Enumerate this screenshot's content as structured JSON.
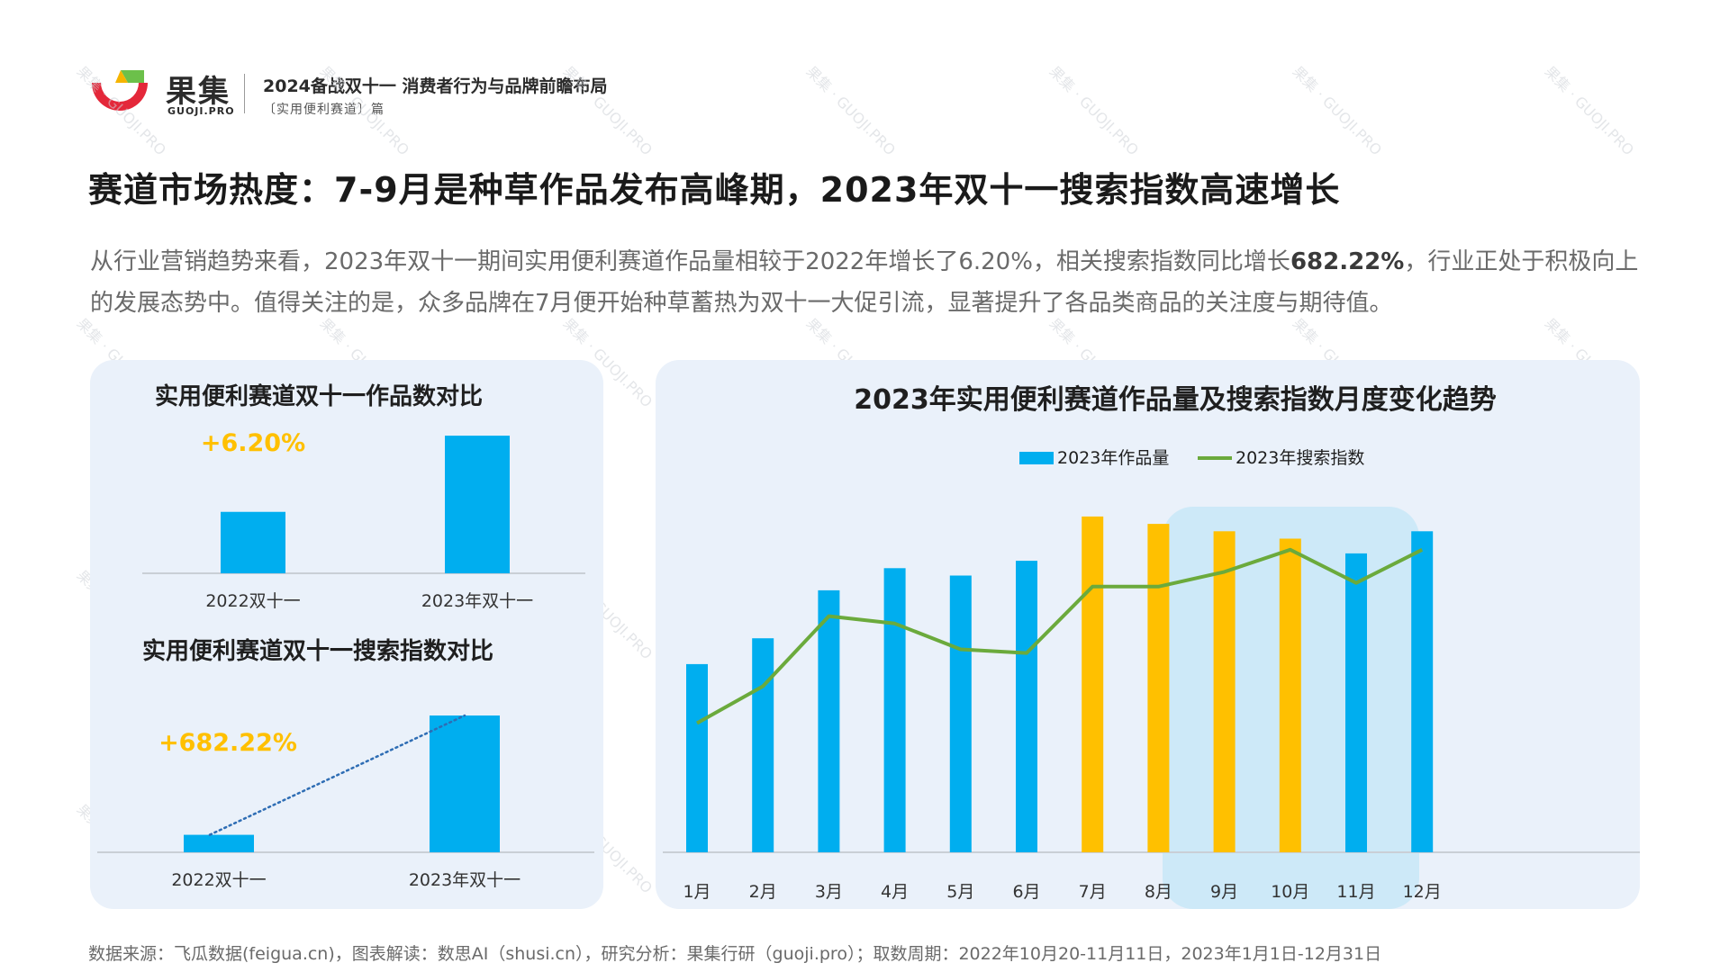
{
  "header": {
    "brand_cn": "果集",
    "brand_en": "GUOJI.PRO",
    "report_title": "2024备战双十一 消费者行为与品牌前瞻布局",
    "report_subtitle": "〔实用便利赛道〕篇",
    "logo_icon": "guoji-logo-icon"
  },
  "slide_title": "赛道市场热度：7-9月是种草作品发布高峰期，2023年双十一搜索指数高速增长",
  "description": {
    "part1": "从行业营销趋势来看，2023年双十一期间实用便利赛道作品量相较于2022年增长了6.20%，相关搜索指数同比增长",
    "highlight": "682.22%",
    "part2": "，行业正处于积极向上的发展态势中。值得关注的是，众多品牌在7月便开始种草蓄热为双十一大促引流，显著提升了各品类商品的关注度与期待值。"
  },
  "colors": {
    "blue": "#00AEEF",
    "orange": "#FFC000",
    "green": "#6BAA3C",
    "highlight_band": "#CDE9F8",
    "growth_label": "#FFC000",
    "dotted_line": "#2E6DB4"
  },
  "chart_data": [
    {
      "type": "bar",
      "title": "实用便利赛道双十一作品数对比",
      "categories": [
        "2022双十一",
        "2023年双十一"
      ],
      "values": [
        100,
        106.2
      ],
      "annotation": "+6.20%",
      "note": "relative values; axis baseline not at zero"
    },
    {
      "type": "bar",
      "title": "实用便利赛道双十一搜索指数对比",
      "categories": [
        "2022双十一",
        "2023年双十一"
      ],
      "values": [
        100,
        782.22
      ],
      "annotation": "+682.22%"
    },
    {
      "type": "bar+line",
      "title": "2023年实用便利赛道作品量及搜索指数月度变化趋势",
      "categories": [
        "1月",
        "2月",
        "3月",
        "4月",
        "5月",
        "6月",
        "7月",
        "8月",
        "9月",
        "10月",
        "11月",
        "12月"
      ],
      "series": [
        {
          "name": "2023年作品量",
          "type": "bar",
          "values": [
            51,
            58,
            71,
            77,
            75,
            79,
            91,
            89,
            87,
            85,
            81,
            87
          ]
        },
        {
          "name": "2023年搜索指数",
          "type": "line",
          "values": [
            35,
            45,
            64,
            62,
            55,
            54,
            72,
            72,
            76,
            82,
            73,
            82
          ]
        }
      ],
      "highlighted_categories": [
        "7月",
        "8月",
        "9月",
        "10月"
      ],
      "ylim": [
        0,
        100
      ],
      "legend": "top-center"
    }
  ],
  "source": "数据来源：飞瓜数据(feigua.cn)，图表解读：数思AI（shusi.cn），研究分析：果集行研（guoji.pro）；取数周期：2022年10月20-11月11日，2023年1月1日-12月31日"
}
